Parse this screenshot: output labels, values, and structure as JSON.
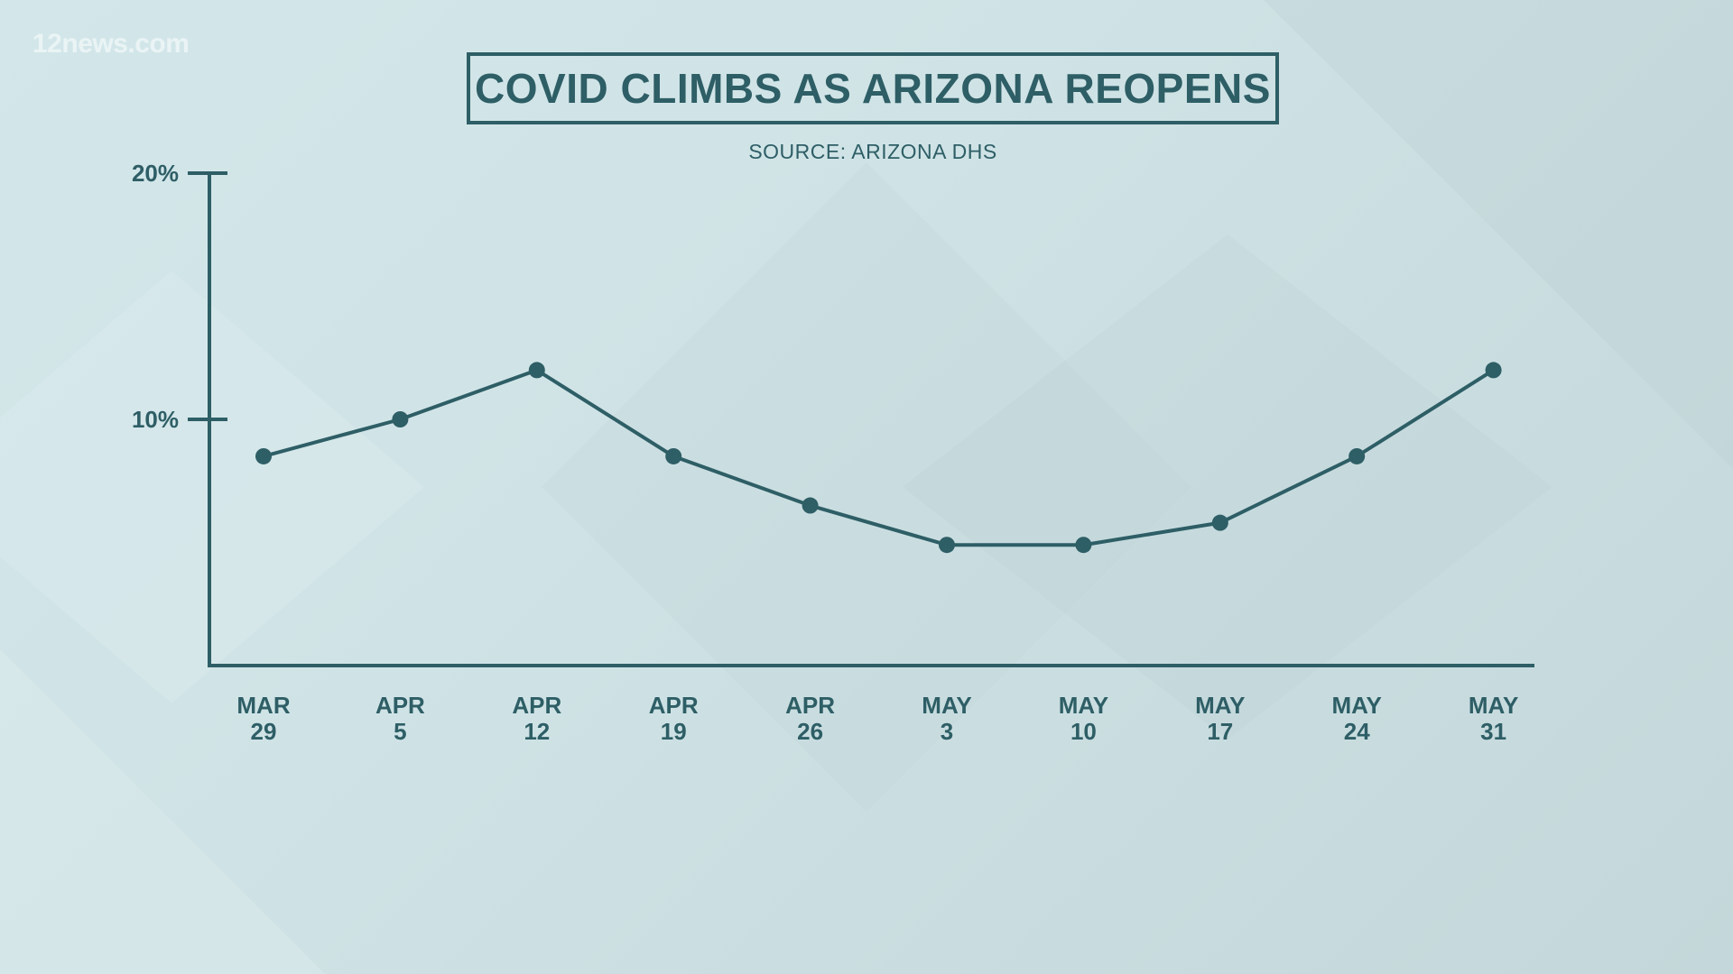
{
  "watermark": "12news.com",
  "colors": {
    "ink": "#2e5e66",
    "background": "#cfe3e6"
  },
  "chart_data": {
    "type": "line",
    "title": "COVID CLIMBS AS ARIZONA REOPENS",
    "subtitle": "SOURCE: ARIZONA DHS",
    "xlabel": "",
    "ylabel": "",
    "categories": [
      [
        "MAR",
        "29"
      ],
      [
        "APR",
        "5"
      ],
      [
        "APR",
        "12"
      ],
      [
        "APR",
        "19"
      ],
      [
        "APR",
        "26"
      ],
      [
        "MAY",
        "3"
      ],
      [
        "MAY",
        "10"
      ],
      [
        "MAY",
        "17"
      ],
      [
        "MAY",
        "24"
      ],
      [
        "MAY",
        "31"
      ]
    ],
    "series": [
      {
        "values": [
          8.5,
          10.0,
          12.0,
          8.5,
          6.5,
          4.9,
          4.9,
          5.8,
          8.5,
          12.0
        ]
      }
    ],
    "ylim": [
      0,
      20
    ],
    "yticks": [
      {
        "value": 20,
        "label": "20%"
      },
      {
        "value": 10,
        "label": "10%"
      }
    ],
    "grid": false,
    "legend": "none",
    "markers": true
  }
}
